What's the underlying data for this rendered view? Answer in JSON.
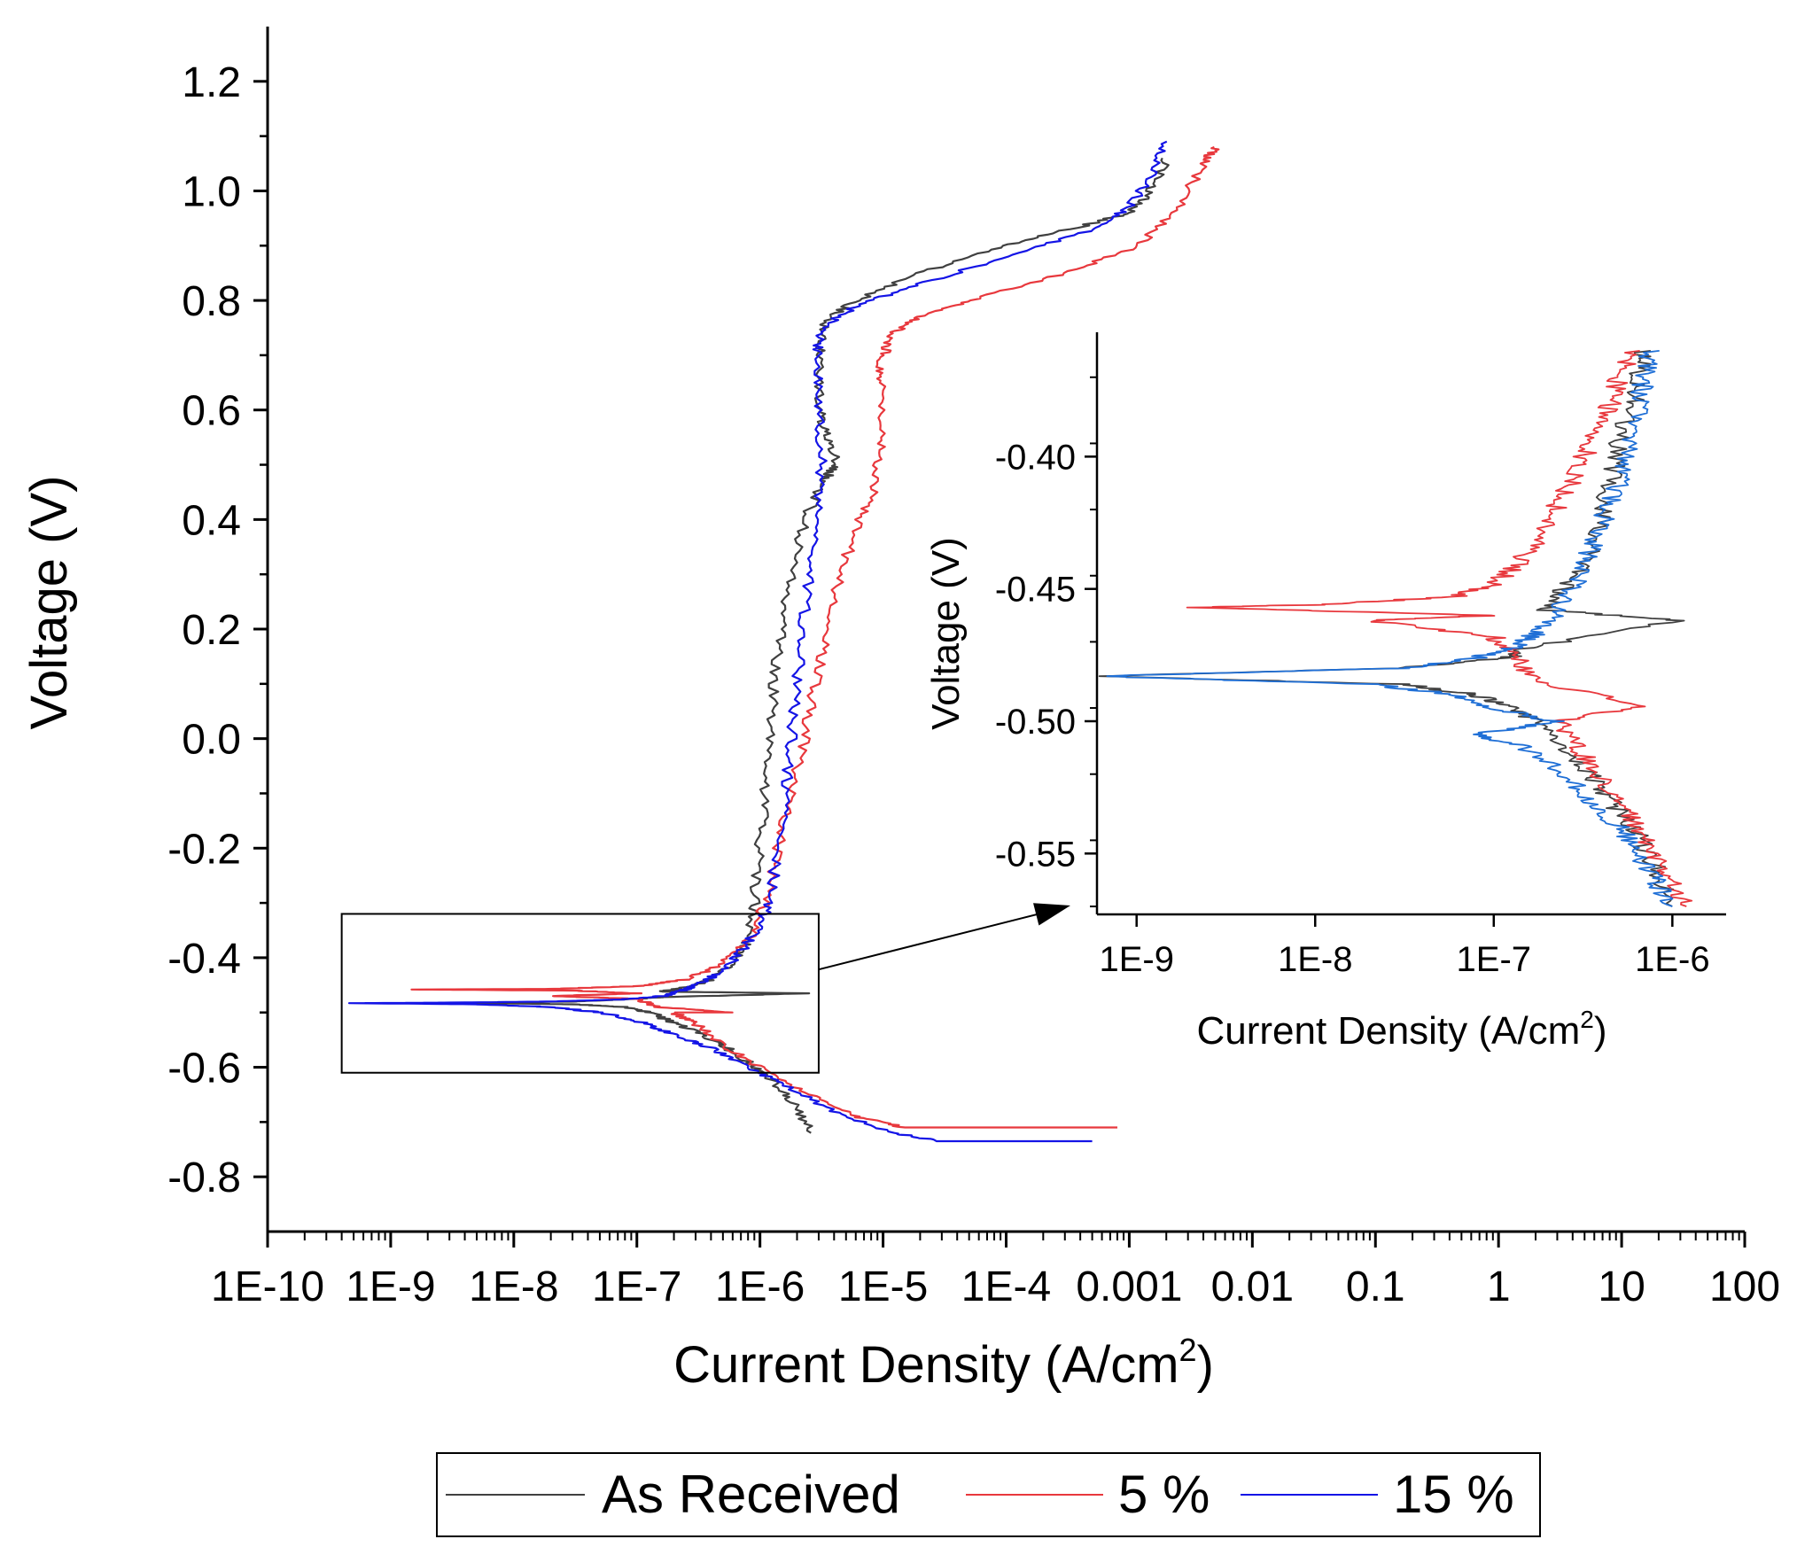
{
  "chart_data": [
    {
      "type": "line",
      "name": "main",
      "xscale": "log",
      "xlabel": "Current Density (A/cm",
      "xlabel_sup": "2",
      "xlabel_tail": ")",
      "ylabel": "Voltage (V)",
      "xlim": [
        1e-10,
        100
      ],
      "ylim": [
        -0.9,
        1.3
      ],
      "xticks": [
        1e-10,
        1e-09,
        1e-08,
        1e-07,
        1e-06,
        1e-05,
        0.0001,
        0.001,
        0.01,
        0.1,
        1,
        10,
        100
      ],
      "xtick_labels": [
        "1E-10",
        "1E-9",
        "1E-8",
        "1E-7",
        "1E-6",
        "1E-5",
        "1E-4",
        "0.001",
        "0.01",
        "0.1",
        "1",
        "10",
        "100"
      ],
      "yticks": [
        -0.8,
        -0.6,
        -0.4,
        -0.2,
        0.0,
        0.2,
        0.4,
        0.6,
        0.8,
        1.0,
        1.2
      ],
      "ytick_labels": [
        "-0.8",
        "-0.6",
        "-0.4",
        "-0.2",
        "0.0",
        "0.2",
        "0.4",
        "0.6",
        "0.8",
        "1.0",
        "1.2"
      ],
      "zoom_box": {
        "x": [
          4e-10,
          3e-06
        ],
        "y": [
          -0.61,
          -0.32
        ]
      },
      "series": [
        {
          "name": "As Received",
          "color": "#404040",
          "points": [
            [
              2.6e-06,
              -0.72
            ],
            [
              1.8e-06,
              -0.66
            ],
            [
              1.2e-06,
              -0.62
            ],
            [
              8e-07,
              -0.59
            ],
            [
              5e-07,
              -0.56
            ],
            [
              3e-07,
              -0.535
            ],
            [
              1.8e-07,
              -0.515
            ],
            [
              1.3e-07,
              -0.5
            ],
            [
              8e-08,
              -0.49
            ],
            [
              3e-08,
              -0.485
            ],
            [
              5e-09,
              -0.483
            ],
            [
              2e-09,
              -0.483
            ],
            [
              6e-09,
              -0.482
            ],
            [
              3e-08,
              -0.48
            ],
            [
              1e-07,
              -0.475
            ],
            [
              1.6e-07,
              -0.472
            ],
            [
              2.6e-06,
              -0.465
            ],
            [
              1.6e-07,
              -0.462
            ],
            [
              2.4e-07,
              -0.455
            ],
            [
              4e-07,
              -0.44
            ],
            [
              6e-07,
              -0.41
            ],
            [
              8e-07,
              -0.37
            ],
            [
              9e-07,
              -0.3
            ],
            [
              1e-06,
              -0.2
            ],
            [
              1.1e-06,
              -0.1
            ],
            [
              1.2e-06,
              0.0
            ],
            [
              1.3e-06,
              0.1
            ],
            [
              1.5e-06,
              0.2
            ],
            [
              1.8e-06,
              0.3
            ],
            [
              2.3e-06,
              0.4
            ],
            [
              3.3e-06,
              0.47
            ],
            [
              4.2e-06,
              0.5
            ],
            [
              3.5e-06,
              0.55
            ],
            [
              3e-06,
              0.6
            ],
            [
              3e-06,
              0.7
            ],
            [
              3.3e-06,
              0.76
            ],
            [
              6e-06,
              0.8
            ],
            [
              2e-05,
              0.85
            ],
            [
              0.0001,
              0.9
            ],
            [
              0.0004,
              0.935
            ],
            [
              0.001,
              0.96
            ],
            [
              0.0015,
              1.0
            ],
            [
              0.002,
              1.06
            ]
          ]
        },
        {
          "name": "5 %",
          "color": "#e8383d",
          "points": [
            [
              0.0008,
              -0.71
            ],
            [
              1.5e-05,
              -0.71
            ],
            [
              6e-06,
              -0.69
            ],
            [
              2.5e-06,
              -0.65
            ],
            [
              1e-06,
              -0.6
            ],
            [
              5e-07,
              -0.56
            ],
            [
              3e-07,
              -0.52
            ],
            [
              2e-07,
              -0.5
            ],
            [
              6e-07,
              -0.5
            ],
            [
              1.5e-07,
              -0.49
            ],
            [
              1e-07,
              -0.475
            ],
            [
              2e-08,
              -0.47
            ],
            [
              1e-07,
              -0.465
            ],
            [
              3e-08,
              -0.46
            ],
            [
              1.5e-09,
              -0.458
            ],
            [
              2e-08,
              -0.457
            ],
            [
              1e-07,
              -0.452
            ],
            [
              2.5e-07,
              -0.44
            ],
            [
              5e-07,
              -0.41
            ],
            [
              8e-07,
              -0.37
            ],
            [
              1.1e-06,
              -0.3
            ],
            [
              1.4e-06,
              -0.2
            ],
            [
              1.8e-06,
              -0.1
            ],
            [
              2.3e-06,
              0.0
            ],
            [
              2.8e-06,
              0.1
            ],
            [
              3.5e-06,
              0.2
            ],
            [
              4.5e-06,
              0.3
            ],
            [
              6.5e-06,
              0.4
            ],
            [
              9e-06,
              0.47
            ],
            [
              9.5e-06,
              0.55
            ],
            [
              9.5e-06,
              0.65
            ],
            [
              1e-05,
              0.7
            ],
            [
              1.2e-05,
              0.74
            ],
            [
              2e-05,
              0.77
            ],
            [
              5e-05,
              0.8
            ],
            [
              0.0003,
              0.85
            ],
            [
              0.0012,
              0.9
            ],
            [
              0.0025,
              0.97
            ],
            [
              0.004,
              1.05
            ],
            [
              0.005,
              1.08
            ]
          ]
        },
        {
          "name": "15 %",
          "color": "#1414e6",
          "points": [
            [
              0.0005,
              -0.735
            ],
            [
              3e-05,
              -0.735
            ],
            [
              1.2e-05,
              -0.72
            ],
            [
              4e-06,
              -0.68
            ],
            [
              1.5e-06,
              -0.63
            ],
            [
              8e-07,
              -0.6
            ],
            [
              4e-07,
              -0.565
            ],
            [
              2e-07,
              -0.54
            ],
            [
              1e-07,
              -0.515
            ],
            [
              5e-08,
              -0.5
            ],
            [
              2e-08,
              -0.49
            ],
            [
              5e-09,
              -0.485
            ],
            [
              5e-10,
              -0.483
            ],
            [
              3e-09,
              -0.482
            ],
            [
              2e-08,
              -0.48
            ],
            [
              8e-08,
              -0.476
            ],
            [
              1.6e-07,
              -0.47
            ],
            [
              2.2e-07,
              -0.462
            ],
            [
              3e-07,
              -0.45
            ],
            [
              4.5e-07,
              -0.43
            ],
            [
              7e-07,
              -0.39
            ],
            [
              1e-06,
              -0.34
            ],
            [
              1.2e-06,
              -0.3
            ],
            [
              1.4e-06,
              -0.2
            ],
            [
              1.6e-06,
              -0.1
            ],
            [
              1.8e-06,
              0.0
            ],
            [
              2e-06,
              0.1
            ],
            [
              2.2e-06,
              0.2
            ],
            [
              2.5e-06,
              0.3
            ],
            [
              2.8e-06,
              0.4
            ],
            [
              3.2e-06,
              0.5
            ],
            [
              3e-06,
              0.6
            ],
            [
              2.9e-06,
              0.7
            ],
            [
              3.2e-06,
              0.75
            ],
            [
              6e-06,
              0.79
            ],
            [
              2e-05,
              0.83
            ],
            [
              0.0001,
              0.88
            ],
            [
              0.0005,
              0.93
            ],
            [
              0.001,
              0.97
            ],
            [
              0.0015,
              1.03
            ],
            [
              0.002,
              1.09
            ]
          ]
        }
      ],
      "legend": {
        "position": "bottom-center",
        "entries": [
          "As Received",
          "5 %",
          "15 %"
        ]
      }
    },
    {
      "type": "line",
      "name": "inset",
      "xscale": "log",
      "xlabel": "Current Density (A/cm",
      "xlabel_sup": "2",
      "xlabel_tail": ")",
      "ylabel": "Voltage (V)",
      "xlim": [
        6e-10,
        2e-06
      ],
      "ylim": [
        -0.573,
        -0.353
      ],
      "xticks": [
        1e-09,
        1e-08,
        1e-07,
        1e-06
      ],
      "xtick_labels": [
        "1E-9",
        "1E-8",
        "1E-7",
        "1E-6"
      ],
      "yticks": [
        -0.55,
        -0.5,
        -0.45,
        -0.4
      ],
      "ytick_labels": [
        "-0.55",
        "-0.50",
        "-0.45",
        "-0.40"
      ],
      "series": [
        {
          "name": "As Received",
          "color": "#404040",
          "points": [
            [
              1e-06,
              -0.57
            ],
            [
              8e-07,
              -0.555
            ],
            [
              6e-07,
              -0.54
            ],
            [
              4.5e-07,
              -0.53
            ],
            [
              3.5e-07,
              -0.52
            ],
            [
              2.5e-07,
              -0.51
            ],
            [
              1.8e-07,
              -0.5
            ],
            [
              1.2e-07,
              -0.495
            ],
            [
              8e-08,
              -0.49
            ],
            [
              3e-08,
              -0.486
            ],
            [
              6e-10,
              -0.483
            ],
            [
              3e-08,
              -0.48
            ],
            [
              1.2e-07,
              -0.476
            ],
            [
              1.6e-07,
              -0.472
            ],
            [
              1.1e-06,
              -0.462
            ],
            [
              2e-07,
              -0.458
            ],
            [
              2.5e-07,
              -0.45
            ],
            [
              3.2e-07,
              -0.44
            ],
            [
              4e-07,
              -0.425
            ],
            [
              4.5e-07,
              -0.41
            ],
            [
              5e-07,
              -0.395
            ],
            [
              6e-07,
              -0.38
            ],
            [
              6.5e-07,
              -0.37
            ],
            [
              7e-07,
              -0.36
            ]
          ]
        },
        {
          "name": "5 %",
          "color": "#e8383d",
          "points": [
            [
              1.2e-06,
              -0.57
            ],
            [
              1e-06,
              -0.56
            ],
            [
              8e-07,
              -0.55
            ],
            [
              6.5e-07,
              -0.54
            ],
            [
              5e-07,
              -0.53
            ],
            [
              3.8e-07,
              -0.52
            ],
            [
              3e-07,
              -0.51
            ],
            [
              2.3e-07,
              -0.5
            ],
            [
              7e-07,
              -0.494
            ],
            [
              1.7e-07,
              -0.485
            ],
            [
              1.3e-07,
              -0.475
            ],
            [
              1e-07,
              -0.468
            ],
            [
              2e-08,
              -0.462
            ],
            [
              1e-07,
              -0.46
            ],
            [
              2e-09,
              -0.457
            ],
            [
              1e-08,
              -0.456
            ],
            [
              6e-08,
              -0.453
            ],
            [
              1e-07,
              -0.448
            ],
            [
              1.4e-07,
              -0.44
            ],
            [
              1.8e-07,
              -0.43
            ],
            [
              2.2e-07,
              -0.42
            ],
            [
              2.7e-07,
              -0.41
            ],
            [
              3.2e-07,
              -0.4
            ],
            [
              3.8e-07,
              -0.39
            ],
            [
              4.5e-07,
              -0.38
            ],
            [
              5e-07,
              -0.37
            ],
            [
              6e-07,
              -0.36
            ]
          ]
        },
        {
          "name": "15 %",
          "color": "#1f6fd6",
          "points": [
            [
              1e-06,
              -0.57
            ],
            [
              8e-07,
              -0.56
            ],
            [
              6.5e-07,
              -0.55
            ],
            [
              5e-07,
              -0.54
            ],
            [
              3.5e-07,
              -0.53
            ],
            [
              2.5e-07,
              -0.52
            ],
            [
              1.5e-07,
              -0.51
            ],
            [
              8e-08,
              -0.505
            ],
            [
              2.2e-07,
              -0.5
            ],
            [
              1e-07,
              -0.495
            ],
            [
              6e-08,
              -0.49
            ],
            [
              2e-08,
              -0.486
            ],
            [
              6e-10,
              -0.483
            ],
            [
              3e-08,
              -0.48
            ],
            [
              8e-08,
              -0.476
            ],
            [
              1.3e-07,
              -0.472
            ],
            [
              1.8e-07,
              -0.466
            ],
            [
              2.3e-07,
              -0.458
            ],
            [
              2.8e-07,
              -0.45
            ],
            [
              3.2e-07,
              -0.44
            ],
            [
              3.8e-07,
              -0.43
            ],
            [
              4.3e-07,
              -0.42
            ],
            [
              5e-07,
              -0.41
            ],
            [
              5.5e-07,
              -0.4
            ],
            [
              6e-07,
              -0.39
            ],
            [
              6.5e-07,
              -0.38
            ],
            [
              7e-07,
              -0.37
            ],
            [
              7.5e-07,
              -0.36
            ]
          ]
        }
      ]
    }
  ]
}
